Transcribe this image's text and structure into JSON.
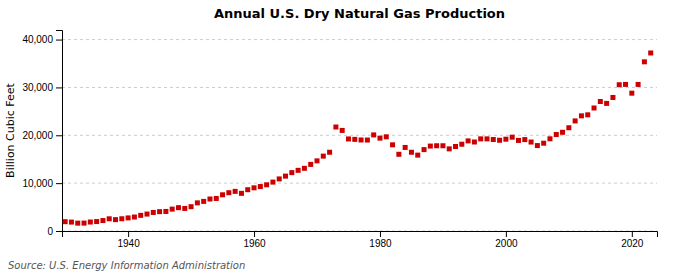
{
  "chart_data": {
    "type": "scatter",
    "title": "Annual U.S. Dry Natural Gas Production",
    "ylabel": "Billion Cubic Feet",
    "annotations": [
      "Source: U.S. Energy Information Administration"
    ],
    "color": "#cc0000",
    "marker": "square",
    "grid": true,
    "xlim": [
      1929.5,
      2024
    ],
    "xticks": [
      1940,
      1960,
      1980,
      2000,
      2020
    ],
    "ylim": [
      0,
      42000
    ],
    "yticks": [
      0,
      {
        "value": 10000,
        "label": "10,000"
      },
      {
        "value": 20000,
        "label": "20,000"
      },
      {
        "value": 30000,
        "label": "30,000"
      },
      {
        "value": 40000,
        "label": "40,000"
      }
    ],
    "x": [
      1930,
      1931,
      1932,
      1933,
      1934,
      1935,
      1936,
      1937,
      1938,
      1939,
      1940,
      1941,
      1942,
      1943,
      1944,
      1945,
      1946,
      1947,
      1948,
      1949,
      1950,
      1951,
      1952,
      1953,
      1954,
      1955,
      1956,
      1957,
      1958,
      1959,
      1960,
      1961,
      1962,
      1963,
      1964,
      1965,
      1966,
      1967,
      1968,
      1969,
      1970,
      1971,
      1972,
      1973,
      1974,
      1975,
      1976,
      1977,
      1978,
      1979,
      1980,
      1981,
      1982,
      1983,
      1984,
      1985,
      1986,
      1987,
      1988,
      1989,
      1990,
      1991,
      1992,
      1993,
      1994,
      1995,
      1996,
      1997,
      1998,
      1999,
      2000,
      2001,
      2002,
      2003,
      2004,
      2005,
      2006,
      2007,
      2008,
      2009,
      2010,
      2011,
      2012,
      2013,
      2014,
      2015,
      2016,
      2017,
      2018,
      2019,
      2020,
      2021,
      2022,
      2023
    ],
    "values": [
      1946,
      1862,
      1643,
      1651,
      1878,
      1972,
      2186,
      2549,
      2373,
      2557,
      2734,
      2917,
      3271,
      3539,
      3876,
      4043,
      4083,
      4572,
      4876,
      4714,
      5082,
      5880,
      6188,
      6685,
      6798,
      7566,
      8001,
      8281,
      7869,
      8628,
      9023,
      9289,
      9654,
      10219,
      10881,
      11468,
      12199,
      12676,
      13099,
      13918,
      14658,
      15647,
      16455,
      21730,
      21019,
      19236,
      19150,
      19020,
      19006,
      20076,
      19403,
      19682,
      18006,
      16028,
      17458,
      16454,
      15856,
      17007,
      17743,
      17810,
      17812,
      17162,
      17659,
      18135,
      18831,
      18599,
      19254,
      19252,
      19117,
      18961,
      19182,
      19604,
      18927,
      19099,
      18591,
      17853,
      18345,
      19266,
      20159,
      20626,
      21577,
      23003,
      24063,
      24275,
      25701,
      27060,
      26662,
      27902,
      30566,
      30629,
      28800,
      30625,
      35351,
      37200
    ]
  }
}
